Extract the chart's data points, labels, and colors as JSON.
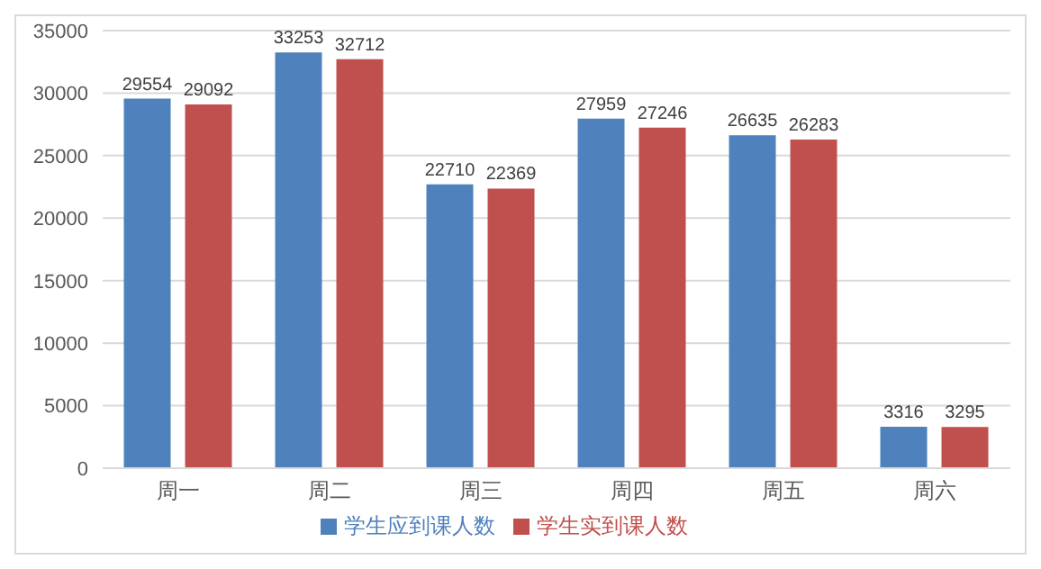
{
  "chart_data": {
    "type": "bar",
    "categories": [
      "周一",
      "周二",
      "周三",
      "周四",
      "周五",
      "周六"
    ],
    "series": [
      {
        "name": "学生应到课人数",
        "color": "#4f81bd",
        "values": [
          29554,
          33253,
          22710,
          27959,
          26635,
          3316
        ]
      },
      {
        "name": "学生实到课人数",
        "color": "#c0504d",
        "values": [
          29092,
          32712,
          22369,
          27246,
          26283,
          3295
        ]
      }
    ],
    "ylim": [
      0,
      35000
    ],
    "yticks": [
      0,
      5000,
      10000,
      15000,
      20000,
      25000,
      30000,
      35000
    ],
    "grid": "y",
    "legend": "bottom",
    "data_labels": true
  }
}
